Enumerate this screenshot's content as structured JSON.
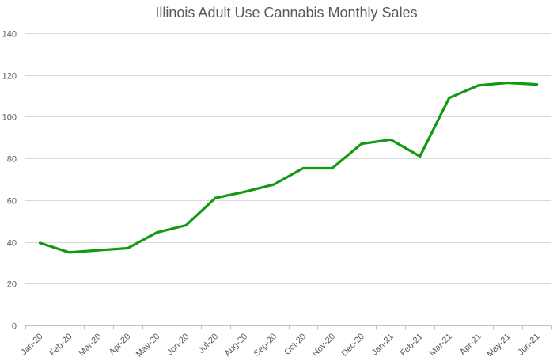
{
  "chart_data": {
    "type": "line",
    "title": "Illinois Adult Use Cannabis Monthly Sales",
    "xlabel": "",
    "ylabel": "",
    "categories": [
      "Jan-20",
      "Feb-20",
      "Mar-20",
      "Apr-20",
      "May-20",
      "Jun-20",
      "Jul-20",
      "Aug-20",
      "Sep-20",
      "Oct-20",
      "Nov-20",
      "Dec-20",
      "Jan-21",
      "Feb-21",
      "Mar-21",
      "Apr-21",
      "May-21",
      "Jun-21"
    ],
    "series": [
      {
        "name": "Monthly Sales",
        "color": "#119911",
        "values": [
          39.5,
          35,
          36,
          37,
          44.5,
          48,
          61,
          64,
          67.5,
          75.3,
          75.3,
          87,
          89,
          81,
          109,
          115,
          116.3,
          115.5
        ]
      }
    ],
    "ylim": [
      0,
      140
    ],
    "yticks": [
      0,
      20,
      40,
      60,
      80,
      100,
      120,
      140
    ],
    "ytick_labels": [
      "0",
      "20",
      "40",
      "60",
      "80",
      "100",
      "120",
      "140"
    ],
    "grid": true,
    "legend": "none"
  }
}
